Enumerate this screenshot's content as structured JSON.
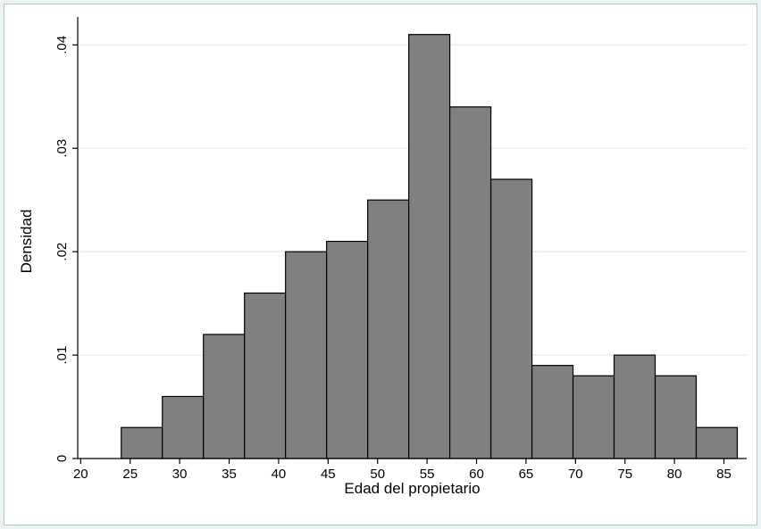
{
  "chart_data": {
    "type": "bar",
    "subtype": "histogram",
    "xlabel": "Edad del propietario",
    "ylabel": "Densidad",
    "xlim": [
      19.7,
      87.3
    ],
    "ylim": [
      0,
      0.0427
    ],
    "x_ticks": [
      20,
      25,
      30,
      35,
      40,
      45,
      50,
      55,
      60,
      65,
      70,
      75,
      80,
      85
    ],
    "x_tick_labels": [
      "20",
      "25",
      "30",
      "35",
      "40",
      "45",
      "50",
      "55",
      "60",
      "65",
      "70",
      "75",
      "80",
      "85"
    ],
    "y_ticks": [
      0,
      0.01,
      0.02,
      0.03,
      0.04
    ],
    "y_tick_labels": [
      "0",
      ".01",
      ".02",
      ".03",
      ".04"
    ],
    "grid": true,
    "legend": "none",
    "bin_start": 24.1,
    "bin_width": 4.15,
    "values": [
      0.003,
      0.006,
      0.012,
      0.016,
      0.02,
      0.021,
      0.025,
      0.041,
      0.034,
      0.027,
      0.009,
      0.008,
      0.01,
      0.008,
      0.003
    ],
    "colors": {
      "bar_fill": "#808080",
      "bar_edge": "#000000",
      "grid": "#e6eaea",
      "outer_background": "#eaf2f3",
      "plot_background": "#ffffff"
    }
  }
}
